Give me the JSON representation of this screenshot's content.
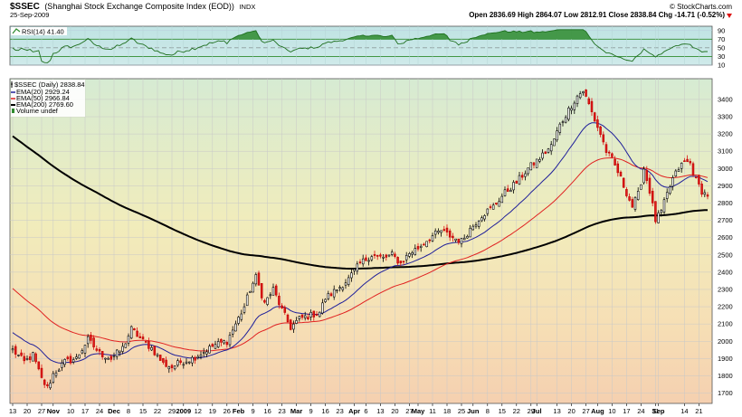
{
  "header": {
    "symbol": "$SSEC",
    "name": "(Shanghai Stock Exchange Composite Index (EOD))",
    "exchange": "INDX",
    "date": "25-Sep-2009",
    "brand": "© StockCharts.com",
    "ohlc_text": "Open 2836.69  High 2864.07  Low 2812.91  Close 2838.84  Chg -14.71 (-0.52%)",
    "change_arrow_icon": "down-triangle-icon"
  },
  "rsi_panel": {
    "label": "RSI(14) 41.40",
    "ticks": [
      "90",
      "70",
      "50",
      "30",
      "10"
    ],
    "tick_values": [
      90,
      70,
      50,
      30,
      10
    ],
    "fill_color": "#2e8b2e"
  },
  "legend": {
    "title": "$SSEC (Daily) 2838.84",
    "items": [
      {
        "label": "EMA(20) 2929.24",
        "color": "#1f1f9a"
      },
      {
        "label": "EMA(50) 2966.84",
        "color": "#e02020"
      },
      {
        "label": "EMA(200) 2769.60",
        "color": "#000000"
      },
      {
        "label": "Volume undef",
        "color": "#2e8b2e"
      }
    ]
  },
  "x_axis": {
    "labels": [
      {
        "t": "13",
        "b": false,
        "d": 0
      },
      {
        "t": "20",
        "b": false,
        "d": 5
      },
      {
        "t": "27",
        "b": false,
        "d": 10
      },
      {
        "t": "Nov",
        "b": true,
        "d": 14
      },
      {
        "t": "10",
        "b": false,
        "d": 20
      },
      {
        "t": "17",
        "b": false,
        "d": 25
      },
      {
        "t": "24",
        "b": false,
        "d": 30
      },
      {
        "t": "Dec",
        "b": true,
        "d": 35
      },
      {
        "t": "8",
        "b": false,
        "d": 40
      },
      {
        "t": "15",
        "b": false,
        "d": 45
      },
      {
        "t": "22",
        "b": false,
        "d": 50
      },
      {
        "t": "29",
        "b": false,
        "d": 55
      },
      {
        "t": "2009",
        "b": true,
        "d": 59
      },
      {
        "t": "12",
        "b": false,
        "d": 64
      },
      {
        "t": "19",
        "b": false,
        "d": 69
      },
      {
        "t": "26",
        "b": false,
        "d": 74
      },
      {
        "t": "Feb",
        "b": true,
        "d": 78
      },
      {
        "t": "9",
        "b": false,
        "d": 83
      },
      {
        "t": "16",
        "b": false,
        "d": 88
      },
      {
        "t": "23",
        "b": false,
        "d": 93
      },
      {
        "t": "Mar",
        "b": true,
        "d": 98
      },
      {
        "t": "9",
        "b": false,
        "d": 103
      },
      {
        "t": "16",
        "b": false,
        "d": 108
      },
      {
        "t": "23",
        "b": false,
        "d": 113
      },
      {
        "t": "Apr",
        "b": true,
        "d": 118
      },
      {
        "t": "6",
        "b": false,
        "d": 122
      },
      {
        "t": "13",
        "b": false,
        "d": 127
      },
      {
        "t": "20",
        "b": false,
        "d": 132
      },
      {
        "t": "27",
        "b": false,
        "d": 137
      },
      {
        "t": "May",
        "b": true,
        "d": 140
      },
      {
        "t": "11",
        "b": false,
        "d": 145
      },
      {
        "t": "18",
        "b": false,
        "d": 150
      },
      {
        "t": "25",
        "b": false,
        "d": 155
      },
      {
        "t": "Jun",
        "b": true,
        "d": 159
      },
      {
        "t": "8",
        "b": false,
        "d": 164
      },
      {
        "t": "15",
        "b": false,
        "d": 169
      },
      {
        "t": "22",
        "b": false,
        "d": 174
      },
      {
        "t": "29",
        "b": false,
        "d": 179
      },
      {
        "t": "Jul",
        "b": true,
        "d": 181
      },
      {
        "t": "13",
        "b": false,
        "d": 188
      },
      {
        "t": "20",
        "b": false,
        "d": 193
      },
      {
        "t": "27",
        "b": false,
        "d": 198
      },
      {
        "t": "Aug",
        "b": true,
        "d": 202
      },
      {
        "t": "10",
        "b": false,
        "d": 207
      },
      {
        "t": "17",
        "b": false,
        "d": 212
      },
      {
        "t": "24",
        "b": false,
        "d": 217
      },
      {
        "t": "31",
        "b": false,
        "d": 222
      },
      {
        "t": "Sep",
        "b": true,
        "d": 223
      },
      {
        "t": "14",
        "b": false,
        "d": 232
      },
      {
        "t": "21",
        "b": false,
        "d": 237
      }
    ]
  },
  "chart_data": {
    "type": "candlestick",
    "title": "$SSEC (Daily) 2838.84",
    "y_ticks": [
      1700,
      1800,
      1900,
      2000,
      2100,
      2200,
      2300,
      2400,
      2500,
      2600,
      2700,
      2800,
      2900,
      3000,
      3100,
      3200,
      3300,
      3400
    ],
    "ylim": [
      1640,
      3520
    ],
    "grid": true,
    "legend_position": "top-left",
    "series": [
      {
        "name": "EMA(20) 2929.24",
        "color": "#1f1f9a"
      },
      {
        "name": "EMA(50) 2966.84",
        "color": "#e02020"
      },
      {
        "name": "EMA(200) 2769.60",
        "color": "#000000"
      }
    ],
    "price_anchors": [
      [
        0,
        1950
      ],
      [
        4,
        1880
      ],
      [
        7,
        1920
      ],
      [
        10,
        1780
      ],
      [
        12,
        1730
      ],
      [
        14,
        1810
      ],
      [
        18,
        1880
      ],
      [
        22,
        1900
      ],
      [
        26,
        2010
      ],
      [
        30,
        1930
      ],
      [
        34,
        1900
      ],
      [
        38,
        1960
      ],
      [
        41,
        2070
      ],
      [
        45,
        2000
      ],
      [
        48,
        1960
      ],
      [
        52,
        1870
      ],
      [
        55,
        1850
      ],
      [
        58,
        1880
      ],
      [
        62,
        1900
      ],
      [
        66,
        1940
      ],
      [
        70,
        1980
      ],
      [
        74,
        2000
      ],
      [
        77,
        2100
      ],
      [
        80,
        2200
      ],
      [
        82,
        2300
      ],
      [
        84,
        2370
      ],
      [
        87,
        2220
      ],
      [
        90,
        2300
      ],
      [
        93,
        2180
      ],
      [
        96,
        2080
      ],
      [
        99,
        2130
      ],
      [
        103,
        2150
      ],
      [
        106,
        2170
      ],
      [
        108,
        2250
      ],
      [
        112,
        2300
      ],
      [
        116,
        2360
      ],
      [
        120,
        2450
      ],
      [
        124,
        2500
      ],
      [
        128,
        2480
      ],
      [
        131,
        2500
      ],
      [
        134,
        2450
      ],
      [
        137,
        2510
      ],
      [
        140,
        2540
      ],
      [
        144,
        2600
      ],
      [
        148,
        2640
      ],
      [
        152,
        2600
      ],
      [
        155,
        2580
      ],
      [
        158,
        2650
      ],
      [
        162,
        2730
      ],
      [
        166,
        2780
      ],
      [
        170,
        2860
      ],
      [
        174,
        2920
      ],
      [
        178,
        3000
      ],
      [
        182,
        3060
      ],
      [
        186,
        3130
      ],
      [
        189,
        3250
      ],
      [
        192,
        3340
      ],
      [
        195,
        3420
      ],
      [
        197,
        3450
      ],
      [
        199,
        3370
      ],
      [
        201,
        3280
      ],
      [
        203,
        3200
      ],
      [
        205,
        3100
      ],
      [
        207,
        3050
      ],
      [
        209,
        2980
      ],
      [
        211,
        2900
      ],
      [
        214,
        2780
      ],
      [
        216,
        2850
      ],
      [
        218,
        3000
      ],
      [
        220,
        2870
      ],
      [
        222,
        2700
      ],
      [
        224,
        2750
      ],
      [
        226,
        2850
      ],
      [
        228,
        2940
      ],
      [
        230,
        3000
      ],
      [
        232,
        3040
      ],
      [
        234,
        3030
      ],
      [
        236,
        2930
      ],
      [
        238,
        2870
      ],
      [
        240,
        2839
      ]
    ]
  }
}
